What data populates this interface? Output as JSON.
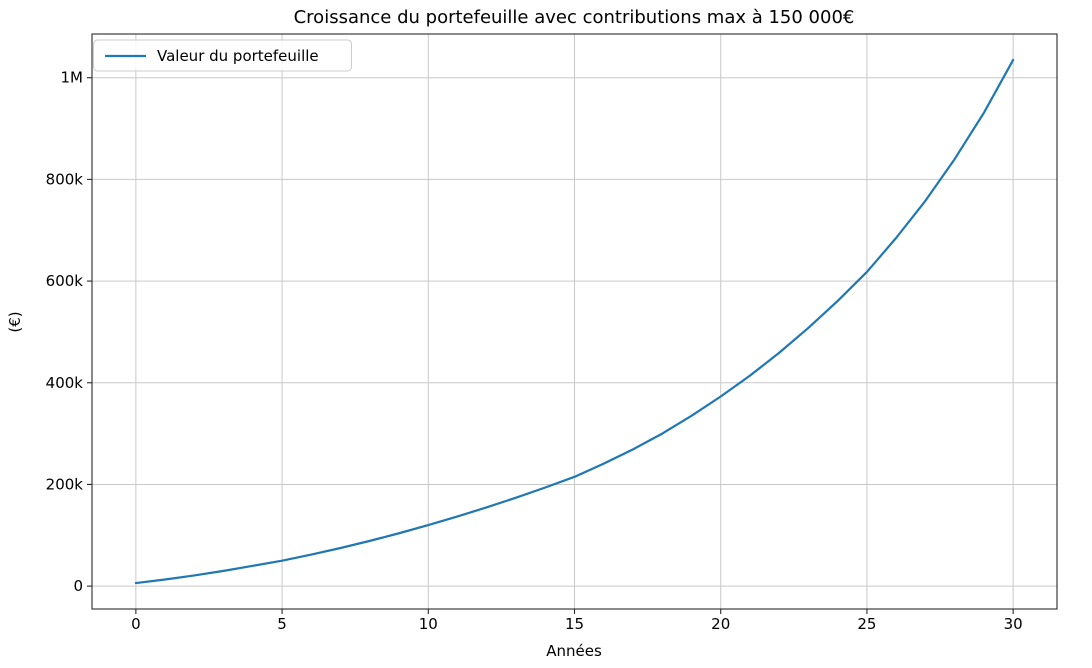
{
  "chart_data": {
    "type": "line",
    "title": "Croissance du portefeuille avec contributions max à 150 000€",
    "xlabel": "Années",
    "ylabel": "(€)",
    "legend": [
      "Valeur du portefeuille"
    ],
    "legend_position": "upper left",
    "grid": true,
    "line_color": "#1f77b4",
    "xlim": [
      -1.5,
      31.5
    ],
    "ylim": [
      -45000,
      1086000
    ],
    "xticks": [
      {
        "value": 0,
        "label": "0"
      },
      {
        "value": 5,
        "label": "5"
      },
      {
        "value": 10,
        "label": "10"
      },
      {
        "value": 15,
        "label": "15"
      },
      {
        "value": 20,
        "label": "20"
      },
      {
        "value": 25,
        "label": "25"
      },
      {
        "value": 30,
        "label": "30"
      }
    ],
    "yticks": [
      {
        "value": 0,
        "label": "0"
      },
      {
        "value": 200000,
        "label": "200k"
      },
      {
        "value": 400000,
        "label": "400k"
      },
      {
        "value": 600000,
        "label": "600k"
      },
      {
        "value": 800000,
        "label": "800k"
      },
      {
        "value": 1000000,
        "label": "1M"
      }
    ],
    "series": [
      {
        "name": "Valeur du portefeuille",
        "x": [
          0,
          1,
          2,
          3,
          4,
          5,
          6,
          7,
          8,
          9,
          10,
          11,
          12,
          13,
          14,
          15,
          16,
          17,
          18,
          19,
          20,
          21,
          22,
          23,
          24,
          25,
          26,
          27,
          28,
          29,
          30
        ],
        "values": [
          6000,
          13000,
          21000,
          30000,
          40000,
          50000,
          62000,
          75000,
          89000,
          104000,
          120000,
          137000,
          155000,
          174000,
          194000,
          215000,
          241000,
          269000,
          300000,
          335000,
          373000,
          414000,
          459000,
          508000,
          561000,
          618000,
          685000,
          758000,
          840000,
          931000,
          1035000
        ]
      }
    ]
  }
}
